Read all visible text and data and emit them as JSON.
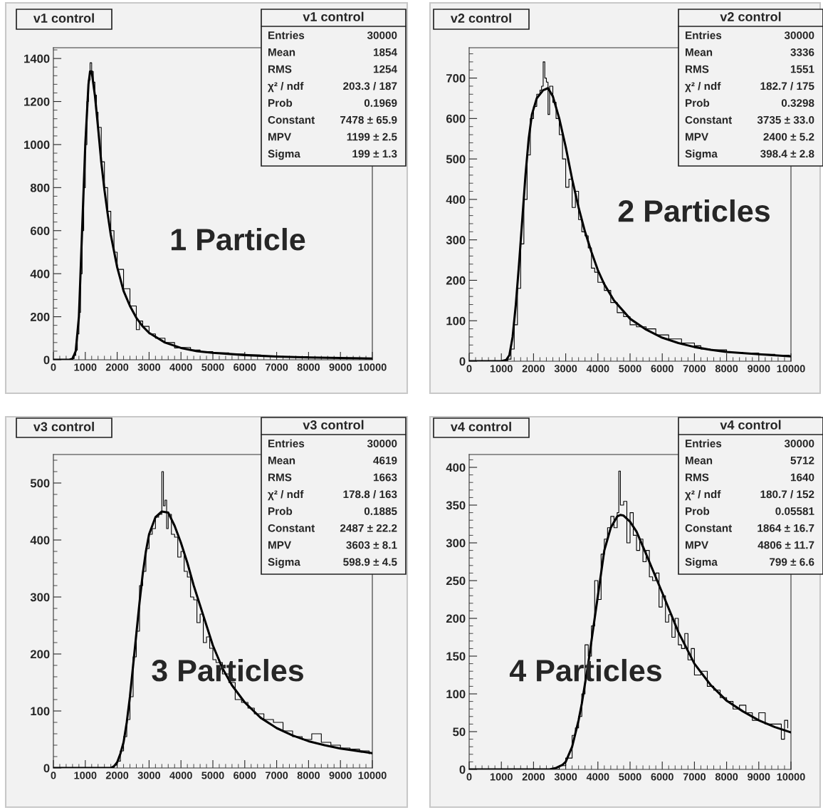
{
  "chart_data": [
    {
      "type": "line",
      "title": "v1 control",
      "xlim": [
        0,
        10000
      ],
      "ylim": [
        0,
        1450
      ],
      "xticks": [
        0,
        1000,
        2000,
        3000,
        4000,
        5000,
        6000,
        7000,
        8000,
        9000,
        10000
      ],
      "yticks": [
        0,
        200,
        400,
        600,
        800,
        1000,
        1200,
        1400
      ],
      "annotations": [
        "1 Particle",
        "v1 control",
        "Entries",
        "30000",
        "Mean",
        "1854",
        "RMS",
        "1254",
        "χ² / ndf",
        "203.3 / 187",
        "Prob",
        "0.1969",
        "Constant",
        "7478 ± 65.9",
        "MPV",
        "1199 ± 2.5",
        "Sigma",
        "199 ± 1.3"
      ],
      "series": [
        {
          "type": "step",
          "color": "#000000",
          "x": [
            0,
            600,
            650,
            700,
            750,
            800,
            850,
            900,
            950,
            1000,
            1050,
            1100,
            1150,
            1200,
            1250,
            1300,
            1350,
            1400,
            1500,
            1600,
            1700,
            1800,
            1900,
            2000,
            2200,
            2400,
            2600,
            2700,
            2800,
            3000,
            3200,
            3500,
            3800,
            4000,
            4300,
            4600,
            5000,
            5500,
            6000,
            6500,
            7000,
            8000,
            9000,
            9950
          ],
          "values": [
            0,
            5,
            20,
            45,
            120,
            220,
            400,
            600,
            800,
            1000,
            1200,
            1300,
            1380,
            1340,
            1290,
            1230,
            1150,
            1080,
            920,
            800,
            690,
            600,
            500,
            420,
            330,
            250,
            140,
            180,
            155,
            120,
            100,
            80,
            55,
            57,
            45,
            38,
            32,
            26,
            22,
            18,
            15,
            11,
            8,
            6
          ]
        },
        {
          "color": "#000000",
          "x": [
            0,
            500,
            600,
            700,
            800,
            900,
            1000,
            1100,
            1150,
            1200,
            1300,
            1400,
            1500,
            1600,
            1700,
            1800,
            2000,
            2200,
            2400,
            2600,
            2800,
            3000,
            3500,
            4000,
            4500,
            5000,
            6000,
            7000,
            8000,
            9000,
            10000
          ],
          "values": [
            0,
            0,
            5,
            40,
            200,
            600,
            1000,
            1280,
            1340,
            1340,
            1230,
            1080,
            920,
            790,
            680,
            580,
            430,
            320,
            250,
            195,
            155,
            125,
            80,
            55,
            40,
            32,
            22,
            15,
            11,
            8,
            6
          ]
        }
      ]
    },
    {
      "type": "line",
      "title": "v2 control",
      "xlim": [
        0,
        10000
      ],
      "ylim": [
        0,
        775
      ],
      "xticks": [
        0,
        1000,
        2000,
        3000,
        4000,
        5000,
        6000,
        7000,
        8000,
        9000,
        10000
      ],
      "yticks": [
        0,
        100,
        200,
        300,
        400,
        500,
        600,
        700
      ],
      "annotations": [
        "2 Particles",
        "v2 control",
        "Entries",
        "30000",
        "Mean",
        "3336",
        "RMS",
        "1551",
        "χ² / ndf",
        "182.7 / 175",
        "Prob",
        "0.3298",
        "Constant",
        "3735 ± 33.0",
        "MPV",
        "2400 ± 5.2",
        "Sigma",
        "398.4 ± 2.8"
      ],
      "series": [
        {
          "type": "step",
          "color": "#000000",
          "x": [
            0,
            1100,
            1200,
            1300,
            1400,
            1500,
            1600,
            1700,
            1800,
            1900,
            2000,
            2100,
            2200,
            2250,
            2300,
            2350,
            2400,
            2450,
            2500,
            2600,
            2700,
            2800,
            2900,
            3000,
            3100,
            3200,
            3300,
            3400,
            3500,
            3600,
            3700,
            3800,
            3900,
            4000,
            4200,
            4400,
            4600,
            4800,
            5000,
            5200,
            5500,
            5800,
            6200,
            6600,
            7000,
            7200,
            7500,
            8000,
            8500,
            9000,
            9500,
            9950
          ],
          "values": [
            0,
            0,
            5,
            30,
            90,
            180,
            290,
            400,
            510,
            600,
            630,
            660,
            670,
            680,
            740,
            700,
            690,
            610,
            680,
            640,
            600,
            560,
            500,
            430,
            450,
            380,
            420,
            350,
            320,
            310,
            280,
            230,
            220,
            195,
            175,
            145,
            120,
            110,
            90,
            85,
            80,
            65,
            55,
            45,
            38,
            30,
            28,
            22,
            20,
            17,
            15,
            12
          ]
        },
        {
          "color": "#000000",
          "x": [
            0,
            1000,
            1150,
            1250,
            1350,
            1450,
            1550,
            1650,
            1750,
            1850,
            1950,
            2100,
            2300,
            2450,
            2600,
            2800,
            3000,
            3200,
            3400,
            3600,
            3800,
            4000,
            4200,
            4500,
            5000,
            5500,
            6000,
            6500,
            7000,
            7500,
            8000,
            9000,
            10000
          ],
          "values": [
            0,
            0,
            3,
            15,
            60,
            140,
            240,
            350,
            460,
            550,
            610,
            650,
            670,
            675,
            655,
            600,
            530,
            450,
            380,
            320,
            270,
            225,
            190,
            150,
            105,
            78,
            58,
            45,
            35,
            28,
            23,
            17,
            12
          ]
        }
      ]
    },
    {
      "type": "line",
      "title": "v3 control",
      "xlim": [
        0,
        10000
      ],
      "ylim": [
        0,
        550
      ],
      "xticks": [
        0,
        1000,
        2000,
        3000,
        4000,
        5000,
        6000,
        7000,
        8000,
        9000,
        10000
      ],
      "yticks": [
        0,
        100,
        200,
        300,
        400,
        500
      ],
      "annotations": [
        "3 Particles",
        "v3 control",
        "Entries",
        "30000",
        "Mean",
        "4619",
        "RMS",
        "1663",
        "χ² / ndf",
        "178.8 / 163",
        "Prob",
        "0.1885",
        "Constant",
        "2487 ± 22.2",
        "MPV",
        "3603 ± 8.1",
        "Sigma",
        "598.9 ± 4.5"
      ],
      "series": [
        {
          "type": "step",
          "color": "#000000",
          "x": [
            0,
            1800,
            1900,
            2000,
            2100,
            2200,
            2300,
            2400,
            2500,
            2600,
            2700,
            2800,
            2900,
            3000,
            3100,
            3200,
            3300,
            3400,
            3450,
            3500,
            3550,
            3600,
            3700,
            3800,
            3900,
            4000,
            4100,
            4200,
            4300,
            4400,
            4500,
            4600,
            4700,
            4800,
            4900,
            5000,
            5100,
            5300,
            5500,
            5700,
            5900,
            6100,
            6300,
            6600,
            6900,
            7200,
            7500,
            7800,
            8100,
            8400,
            8700,
            9000,
            9300,
            9600,
            9900
          ],
          "values": [
            0,
            0,
            5,
            12,
            30,
            55,
            85,
            125,
            195,
            240,
            320,
            345,
            385,
            410,
            420,
            440,
            445,
            520,
            460,
            470,
            420,
            445,
            410,
            405,
            370,
            380,
            345,
            335,
            300,
            295,
            255,
            270,
            220,
            230,
            210,
            190,
            185,
            165,
            150,
            120,
            115,
            105,
            95,
            85,
            80,
            65,
            55,
            50,
            60,
            45,
            40,
            35,
            33,
            30,
            25
          ]
        },
        {
          "color": "#000000",
          "x": [
            0,
            1800,
            1900,
            2000,
            2100,
            2200,
            2300,
            2400,
            2500,
            2600,
            2700,
            2800,
            2900,
            3000,
            3200,
            3400,
            3600,
            3800,
            4000,
            4200,
            4400,
            4600,
            4800,
            5000,
            5300,
            5600,
            6000,
            6500,
            7000,
            7500,
            8000,
            8500,
            9000,
            9500,
            10000
          ],
          "values": [
            0,
            0,
            3,
            10,
            25,
            45,
            80,
            125,
            180,
            235,
            290,
            340,
            380,
            410,
            440,
            450,
            448,
            425,
            395,
            360,
            320,
            285,
            250,
            215,
            175,
            145,
            115,
            88,
            70,
            57,
            47,
            40,
            34,
            30,
            26
          ]
        }
      ]
    },
    {
      "type": "line",
      "title": "v4 control",
      "xlim": [
        0,
        10000
      ],
      "ylim": [
        0,
        417
      ],
      "xticks": [
        0,
        1000,
        2000,
        3000,
        4000,
        5000,
        6000,
        7000,
        8000,
        9000,
        10000
      ],
      "yticks": [
        0,
        50,
        100,
        150,
        200,
        250,
        300,
        350,
        400
      ],
      "annotations": [
        "4 Particles",
        "v4 control",
        "Entries",
        "30000",
        "Mean",
        "5712",
        "RMS",
        "1640",
        "χ² / ndf",
        "180.7 / 152",
        "Prob",
        "0.05581",
        "Constant",
        "1864 ± 16.7",
        "MPV",
        "4806 ± 11.7",
        "Sigma",
        "799 ± 6.6"
      ],
      "series": [
        {
          "type": "step",
          "color": "#000000",
          "x": [
            0,
            2600,
            2800,
            3000,
            3200,
            3300,
            3400,
            3500,
            3600,
            3700,
            3800,
            3900,
            4000,
            4100,
            4200,
            4300,
            4400,
            4500,
            4600,
            4650,
            4700,
            4800,
            4900,
            5000,
            5100,
            5200,
            5300,
            5400,
            5500,
            5600,
            5700,
            5800,
            5900,
            6000,
            6100,
            6200,
            6300,
            6400,
            6500,
            6600,
            6700,
            6800,
            6900,
            7000,
            7200,
            7400,
            7600,
            7800,
            8000,
            8200,
            8400,
            8600,
            8800,
            9000,
            9200,
            9500,
            9700,
            9800,
            9900
          ],
          "values": [
            0,
            0,
            5,
            15,
            45,
            55,
            70,
            100,
            165,
            150,
            190,
            250,
            225,
            285,
            305,
            320,
            335,
            320,
            340,
            395,
            350,
            355,
            300,
            340,
            310,
            290,
            305,
            275,
            290,
            255,
            250,
            260,
            215,
            230,
            195,
            205,
            175,
            200,
            165,
            160,
            180,
            145,
            160,
            125,
            130,
            110,
            105,
            95,
            90,
            80,
            85,
            75,
            65,
            75,
            60,
            60,
            40,
            65,
            55
          ]
        },
        {
          "color": "#000000",
          "x": [
            0,
            2500,
            2700,
            2900,
            3000,
            3200,
            3400,
            3500,
            3700,
            3900,
            4000,
            4200,
            4400,
            4600,
            4700,
            4800,
            5000,
            5200,
            5500,
            6000,
            6500,
            7000,
            7500,
            8000,
            8500,
            9000,
            9500,
            10000
          ],
          "values": [
            0,
            0,
            2,
            6,
            10,
            30,
            65,
            87,
            140,
            200,
            230,
            290,
            320,
            335,
            337,
            336,
            328,
            315,
            285,
            234,
            182,
            140,
            112,
            91,
            77,
            65,
            56,
            49
          ]
        }
      ]
    }
  ]
}
